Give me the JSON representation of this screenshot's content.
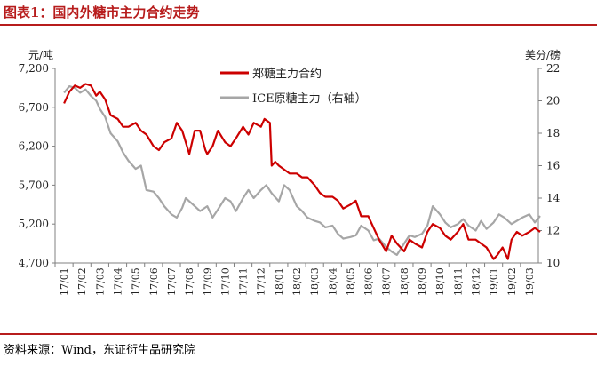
{
  "figure": {
    "title": "图表1：国内外糖市主力合约走势",
    "source": "资料来源：Wind，东证衍生品研究院"
  },
  "colors": {
    "left_series": "#cc0000",
    "right_series": "#a6a6a6",
    "accent": "#b71c1c",
    "axis": "#808080"
  },
  "chart_data": {
    "type": "line",
    "left_axis": {
      "unit": "元/吨",
      "ticks": [
        "7,200",
        "6,700",
        "6,200",
        "5,700",
        "5,200",
        "4,700"
      ],
      "range": [
        4700,
        7200
      ]
    },
    "right_axis": {
      "unit": "美分/磅",
      "ticks": [
        "22",
        "20",
        "18",
        "16",
        "14",
        "12",
        "10"
      ],
      "range": [
        10,
        22
      ]
    },
    "x_ticks": [
      "17/01",
      "17/02",
      "17/03",
      "17/04",
      "17/05",
      "17/06",
      "17/07",
      "17/08",
      "17/09",
      "17/10",
      "17/11",
      "17/12",
      "18/01",
      "18/02",
      "18/03",
      "18/04",
      "18/05",
      "18/06",
      "18/07",
      "18/08",
      "18/09",
      "18/10",
      "18/11",
      "18/12",
      "19/01",
      "19/02",
      "19/03"
    ],
    "grid": false,
    "legend_position": "top-center",
    "series": [
      {
        "name": "郑糖主力合约",
        "axis": "left",
        "x": [
          0,
          0.3,
          0.6,
          0.9,
          1.2,
          1.5,
          1.8,
          2.0,
          2.3,
          2.6,
          3.0,
          3.3,
          3.6,
          4.0,
          4.3,
          4.6,
          5.0,
          5.3,
          5.6,
          6.0,
          6.3,
          6.6,
          6.8,
          7.0,
          7.3,
          7.6,
          7.9,
          8.0,
          8.3,
          8.6,
          9.0,
          9.3,
          9.6,
          10.0,
          10.3,
          10.6,
          11.0,
          11.2,
          11.5,
          11.6,
          11.8,
          12.0,
          12.3,
          12.6,
          13.0,
          13.3,
          13.6,
          14.0,
          14.3,
          14.6,
          15.0,
          15.3,
          15.6,
          16.0,
          16.3,
          16.6,
          17.0,
          17.3,
          17.6,
          18.0,
          18.3,
          18.6,
          19.0,
          19.3,
          19.6,
          20.0,
          20.3,
          20.6,
          21.0,
          21.3,
          21.6,
          22.0,
          22.3,
          22.6,
          23.0,
          23.3,
          23.6,
          24.0,
          24.2,
          24.5,
          24.8,
          25.0,
          25.3,
          25.6,
          26.0,
          26.3,
          26.6
        ],
        "values": [
          6750,
          6900,
          6980,
          6950,
          7000,
          6980,
          6850,
          6900,
          6800,
          6600,
          6550,
          6450,
          6450,
          6500,
          6400,
          6350,
          6200,
          6150,
          6250,
          6300,
          6500,
          6400,
          6250,
          6100,
          6400,
          6400,
          6150,
          6100,
          6200,
          6400,
          6250,
          6200,
          6300,
          6450,
          6350,
          6500,
          6450,
          6550,
          6500,
          5950,
          6000,
          5950,
          5900,
          5850,
          5850,
          5800,
          5800,
          5700,
          5600,
          5550,
          5550,
          5500,
          5400,
          5450,
          5500,
          5300,
          5300,
          5150,
          5000,
          4850,
          5050,
          4950,
          4850,
          5000,
          4950,
          4900,
          5100,
          5200,
          5150,
          5050,
          5000,
          5100,
          5200,
          5000,
          5000,
          4950,
          4900,
          4750,
          4800,
          4900,
          4750,
          5000,
          5100,
          5050,
          5100,
          5150,
          5100
        ]
      },
      {
        "name": "ICE原糖主力（右轴）",
        "axis": "right",
        "x": [
          0,
          0.3,
          0.6,
          0.9,
          1.2,
          1.5,
          1.8,
          2.0,
          2.3,
          2.6,
          3.0,
          3.3,
          3.6,
          4.0,
          4.3,
          4.6,
          5.0,
          5.3,
          5.6,
          6.0,
          6.3,
          6.6,
          6.8,
          7.0,
          7.3,
          7.6,
          8.0,
          8.3,
          8.6,
          9.0,
          9.3,
          9.6,
          10.0,
          10.3,
          10.6,
          11.0,
          11.3,
          11.6,
          12.0,
          12.3,
          12.6,
          13.0,
          13.3,
          13.6,
          14.0,
          14.3,
          14.6,
          15.0,
          15.3,
          15.6,
          16.0,
          16.3,
          16.6,
          17.0,
          17.3,
          17.6,
          18.0,
          18.3,
          18.6,
          19.0,
          19.3,
          19.6,
          20.0,
          20.3,
          20.6,
          21.0,
          21.3,
          21.6,
          22.0,
          22.3,
          22.6,
          23.0,
          23.3,
          23.6,
          24.0,
          24.3,
          24.6,
          25.0,
          25.3,
          25.6,
          26.0,
          26.3,
          26.6
        ],
        "values": [
          20.5,
          20.9,
          20.8,
          20.5,
          20.7,
          20.3,
          20.0,
          19.5,
          19.0,
          18.0,
          17.5,
          16.8,
          16.3,
          15.8,
          16.0,
          14.5,
          14.4,
          14.0,
          13.5,
          13.0,
          12.8,
          13.4,
          14.0,
          13.8,
          13.5,
          13.2,
          13.5,
          12.8,
          13.3,
          14.0,
          13.8,
          13.2,
          14.0,
          14.5,
          14.0,
          14.5,
          14.8,
          14.3,
          13.8,
          14.8,
          14.5,
          13.5,
          13.2,
          12.8,
          12.6,
          12.5,
          12.2,
          12.3,
          11.8,
          11.5,
          11.6,
          11.7,
          12.3,
          12.0,
          11.4,
          11.5,
          11.0,
          10.7,
          10.5,
          11.2,
          11.7,
          11.6,
          11.8,
          12.3,
          13.5,
          13.0,
          12.5,
          12.2,
          12.4,
          12.7,
          12.3,
          12.0,
          12.6,
          12.1,
          12.5,
          13.0,
          12.8,
          12.4,
          12.6,
          12.8,
          13.0,
          12.5,
          12.9
        ]
      }
    ]
  }
}
